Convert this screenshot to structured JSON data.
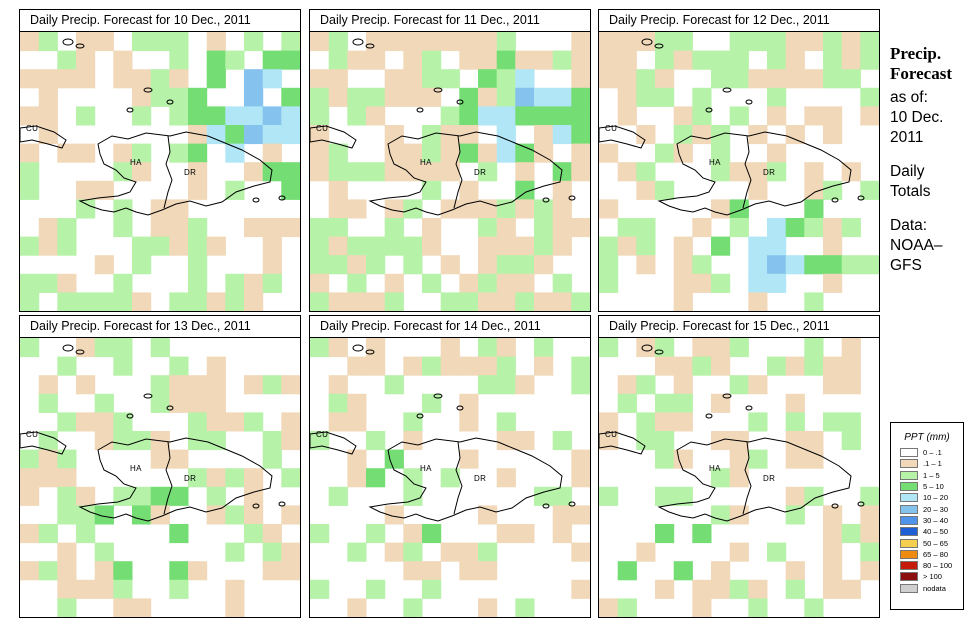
{
  "panels": [
    {
      "title": "Daily Precip. Forecast for  10 Dec., 2011",
      "density": 0.55,
      "intensity": 2.6,
      "hotspot": [
        0.82,
        0.27
      ],
      "seed": 11
    },
    {
      "title": "Daily Precip. Forecast for  11 Dec., 2011",
      "density": 0.62,
      "intensity": 2.3,
      "hotspot": [
        0.75,
        0.3
      ],
      "seed": 23
    },
    {
      "title": "Daily Precip. Forecast for  12 Dec., 2011",
      "density": 0.48,
      "intensity": 1.6,
      "hotspot": [
        0.58,
        0.78
      ],
      "seed": 37
    },
    {
      "title": "Daily Precip. Forecast for  13 Dec., 2011",
      "density": 0.42,
      "intensity": 1.1,
      "hotspot": [
        0.45,
        0.62
      ],
      "seed": 41
    },
    {
      "title": "Daily Precip. Forecast for  14 Dec., 2011",
      "density": 0.36,
      "intensity": 0.9,
      "hotspot": [
        0.3,
        0.55
      ],
      "seed": 53
    },
    {
      "title": "Daily Precip. Forecast for  15 Dec., 2011",
      "density": 0.38,
      "intensity": 1.0,
      "hotspot": [
        0.2,
        0.8
      ],
      "seed": 67
    }
  ],
  "map_labels": {
    "cuba": "CU",
    "haiti": "HA",
    "dr": "DR"
  },
  "side": {
    "title1": "Precip.",
    "title2": "Forecast",
    "asof": "as of:",
    "date1": "10 Dec.",
    "date2": "2011",
    "daily1": "Daily",
    "daily2": "Totals",
    "data1": "Data:",
    "data2": "NOAA–",
    "data3": "GFS"
  },
  "legend": {
    "title": "PPT (mm)",
    "items": [
      {
        "label": "0 – .1",
        "color": "#ffffff"
      },
      {
        "label": ".1 – 1",
        "color": "#f1d8b9"
      },
      {
        "label": "1 – 5",
        "color": "#b6f2a8"
      },
      {
        "label": "5 – 10",
        "color": "#74dd74"
      },
      {
        "label": "10 – 20",
        "color": "#b0e6f5"
      },
      {
        "label": "20 – 30",
        "color": "#85c2ee"
      },
      {
        "label": "30 – 40",
        "color": "#4f93ea"
      },
      {
        "label": "40 – 50",
        "color": "#1e5fd5"
      },
      {
        "label": "50 – 65",
        "color": "#f4d04e"
      },
      {
        "label": "65 – 80",
        "color": "#ef8b10"
      },
      {
        "label": "80 – 100",
        "color": "#c61a0a"
      },
      {
        "label": "> 100",
        "color": "#8a0f0f"
      },
      {
        "label": "nodata",
        "color": "#cfcfcf"
      }
    ]
  }
}
